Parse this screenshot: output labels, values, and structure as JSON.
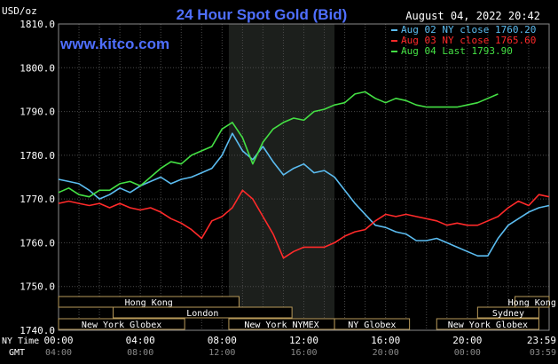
{
  "header": {
    "title": "24 Hour Spot Gold (Bid)",
    "unit": "USD/oz",
    "datetime": "August 04, 2022 20:42",
    "site": "www.kitco.com"
  },
  "legend": [
    {
      "label": "Aug 02 NY close 1760.20",
      "color": "#5bbcf0"
    },
    {
      "label": "Aug 03 NY close 1765.60",
      "color": "#ff2a2a"
    },
    {
      "label": "Aug 04 Last 1793.90",
      "color": "#44e044"
    }
  ],
  "sessions": {
    "row1": [
      {
        "label": "Hong Kong",
        "start": 0,
        "end": 8.83
      },
      {
        "label": "Hong Kong",
        "start": 22.33,
        "end": 24
      }
    ],
    "row2": [
      {
        "label": "London",
        "start": 2.67,
        "end": 11.42
      },
      {
        "label": "Sydney",
        "start": 20.5,
        "end": 23.5
      }
    ],
    "row3": [
      {
        "label": "New York Globex",
        "start": 0,
        "end": 6.17
      },
      {
        "label": "New York NYMEX",
        "start": 8.33,
        "end": 13.5
      },
      {
        "label": "NY Globex",
        "start": 13.5,
        "end": 17.17
      },
      {
        "label": "New York Globex",
        "start": 18.5,
        "end": 23.5
      }
    ]
  },
  "footer": {
    "ny_label": "NY Time",
    "gmt_label": "GMT",
    "gmt_ticks": [
      "04:00",
      "08:00",
      "12:00",
      "16:00",
      "20:00",
      "00:00",
      "03:59"
    ]
  },
  "chart_data": {
    "type": "line",
    "title": "24 Hour Spot Gold (Bid)",
    "ylabel": "USD/oz",
    "xlabel": "NY Time",
    "ylim": [
      1740,
      1810
    ],
    "xlim": [
      0,
      24
    ],
    "yticks": [
      1740,
      1750,
      1760,
      1770,
      1780,
      1790,
      1800,
      1810
    ],
    "ytick_labels": [
      "1740.0",
      "1750.0",
      "1760.0",
      "1770.0",
      "1780.0",
      "1790.0",
      "1800.0",
      "1810.0"
    ],
    "xticks": [
      0,
      4,
      8,
      12,
      16,
      20,
      23.98
    ],
    "xtick_labels": [
      "00:00",
      "04:00",
      "08:00",
      "12:00",
      "16:00",
      "20:00",
      "23:59"
    ],
    "grid": true,
    "shaded_region": [
      8.33,
      13.5
    ],
    "legend_position": "top-right",
    "series": [
      {
        "name": "Aug 02 NY close 1760.20",
        "color": "#5bbcf0",
        "points": [
          [
            0,
            1774.5
          ],
          [
            0.5,
            1774
          ],
          [
            1,
            1773.5
          ],
          [
            1.5,
            1772
          ],
          [
            2,
            1770
          ],
          [
            2.5,
            1771
          ],
          [
            3,
            1772.5
          ],
          [
            3.5,
            1771.5
          ],
          [
            4,
            1773
          ],
          [
            4.5,
            1774
          ],
          [
            5,
            1775
          ],
          [
            5.5,
            1773.5
          ],
          [
            6,
            1774.5
          ],
          [
            6.5,
            1775
          ],
          [
            7,
            1776
          ],
          [
            7.5,
            1777
          ],
          [
            8,
            1780
          ],
          [
            8.5,
            1785
          ],
          [
            9,
            1781
          ],
          [
            9.5,
            1779
          ],
          [
            10,
            1782
          ],
          [
            10.5,
            1778.5
          ],
          [
            11,
            1775.5
          ],
          [
            11.5,
            1777
          ],
          [
            12,
            1778
          ],
          [
            12.5,
            1776
          ],
          [
            13,
            1776.5
          ],
          [
            13.5,
            1775
          ],
          [
            14,
            1772
          ],
          [
            14.5,
            1769
          ],
          [
            15,
            1766.5
          ],
          [
            15.5,
            1764
          ],
          [
            16,
            1763.5
          ],
          [
            16.5,
            1762.5
          ],
          [
            17,
            1762
          ],
          [
            17.5,
            1760.5
          ],
          [
            18,
            1760.5
          ],
          [
            18.5,
            1761
          ],
          [
            19,
            1760
          ],
          [
            19.5,
            1759
          ],
          [
            20,
            1758
          ],
          [
            20.5,
            1757
          ],
          [
            21,
            1757
          ],
          [
            21.5,
            1761
          ],
          [
            22,
            1764
          ],
          [
            22.5,
            1765.5
          ],
          [
            23,
            1767
          ],
          [
            23.5,
            1768
          ],
          [
            24,
            1768.5
          ]
        ]
      },
      {
        "name": "Aug 03 NY close 1765.60",
        "color": "#ff2a2a",
        "points": [
          [
            0,
            1769
          ],
          [
            0.5,
            1769.5
          ],
          [
            1,
            1769
          ],
          [
            1.5,
            1768.5
          ],
          [
            2,
            1769
          ],
          [
            2.5,
            1768
          ],
          [
            3,
            1769
          ],
          [
            3.5,
            1768
          ],
          [
            4,
            1767.5
          ],
          [
            4.5,
            1768
          ],
          [
            5,
            1767
          ],
          [
            5.5,
            1765.5
          ],
          [
            6,
            1764.5
          ],
          [
            6.5,
            1763
          ],
          [
            7,
            1761
          ],
          [
            7.5,
            1765
          ],
          [
            8,
            1766
          ],
          [
            8.5,
            1768
          ],
          [
            9,
            1772
          ],
          [
            9.5,
            1770
          ],
          [
            10,
            1766
          ],
          [
            10.5,
            1762
          ],
          [
            11,
            1756.5
          ],
          [
            11.5,
            1758
          ],
          [
            12,
            1759
          ],
          [
            12.5,
            1759
          ],
          [
            13,
            1759
          ],
          [
            13.5,
            1760
          ],
          [
            14,
            1761.5
          ],
          [
            14.5,
            1762.5
          ],
          [
            15,
            1763
          ],
          [
            15.5,
            1765
          ],
          [
            16,
            1766.5
          ],
          [
            16.5,
            1766
          ],
          [
            17,
            1766.5
          ],
          [
            17.5,
            1766
          ],
          [
            18,
            1765.5
          ],
          [
            18.5,
            1765
          ],
          [
            19,
            1764
          ],
          [
            19.5,
            1764.5
          ],
          [
            20,
            1764
          ],
          [
            20.5,
            1764
          ],
          [
            21,
            1765
          ],
          [
            21.5,
            1766
          ],
          [
            22,
            1768
          ],
          [
            22.5,
            1769.5
          ],
          [
            23,
            1768.5
          ],
          [
            23.5,
            1771
          ],
          [
            24,
            1770.5
          ]
        ]
      },
      {
        "name": "Aug 04 Last 1793.90",
        "color": "#44e044",
        "points": [
          [
            0,
            1771.5
          ],
          [
            0.5,
            1772.5
          ],
          [
            1,
            1771
          ],
          [
            1.5,
            1770.5
          ],
          [
            2,
            1772
          ],
          [
            2.5,
            1772
          ],
          [
            3,
            1773.5
          ],
          [
            3.5,
            1774
          ],
          [
            4,
            1773
          ],
          [
            4.5,
            1775
          ],
          [
            5,
            1777
          ],
          [
            5.5,
            1778.5
          ],
          [
            6,
            1778
          ],
          [
            6.5,
            1780
          ],
          [
            7,
            1781
          ],
          [
            7.5,
            1782
          ],
          [
            8,
            1786
          ],
          [
            8.5,
            1787.5
          ],
          [
            9,
            1784
          ],
          [
            9.5,
            1778
          ],
          [
            10,
            1783
          ],
          [
            10.5,
            1786
          ],
          [
            11,
            1787.5
          ],
          [
            11.5,
            1788.5
          ],
          [
            12,
            1788
          ],
          [
            12.5,
            1790
          ],
          [
            13,
            1790.5
          ],
          [
            13.5,
            1791.5
          ],
          [
            14,
            1792
          ],
          [
            14.5,
            1794
          ],
          [
            15,
            1794.5
          ],
          [
            15.5,
            1793
          ],
          [
            16,
            1792
          ],
          [
            16.5,
            1793
          ],
          [
            17,
            1792.5
          ],
          [
            17.5,
            1791.5
          ],
          [
            18,
            1791
          ],
          [
            18.5,
            1791
          ],
          [
            19,
            1791
          ],
          [
            19.5,
            1791
          ],
          [
            20,
            1791.5
          ],
          [
            20.5,
            1792
          ],
          [
            21,
            1793
          ],
          [
            21.5,
            1794
          ]
        ]
      }
    ]
  }
}
